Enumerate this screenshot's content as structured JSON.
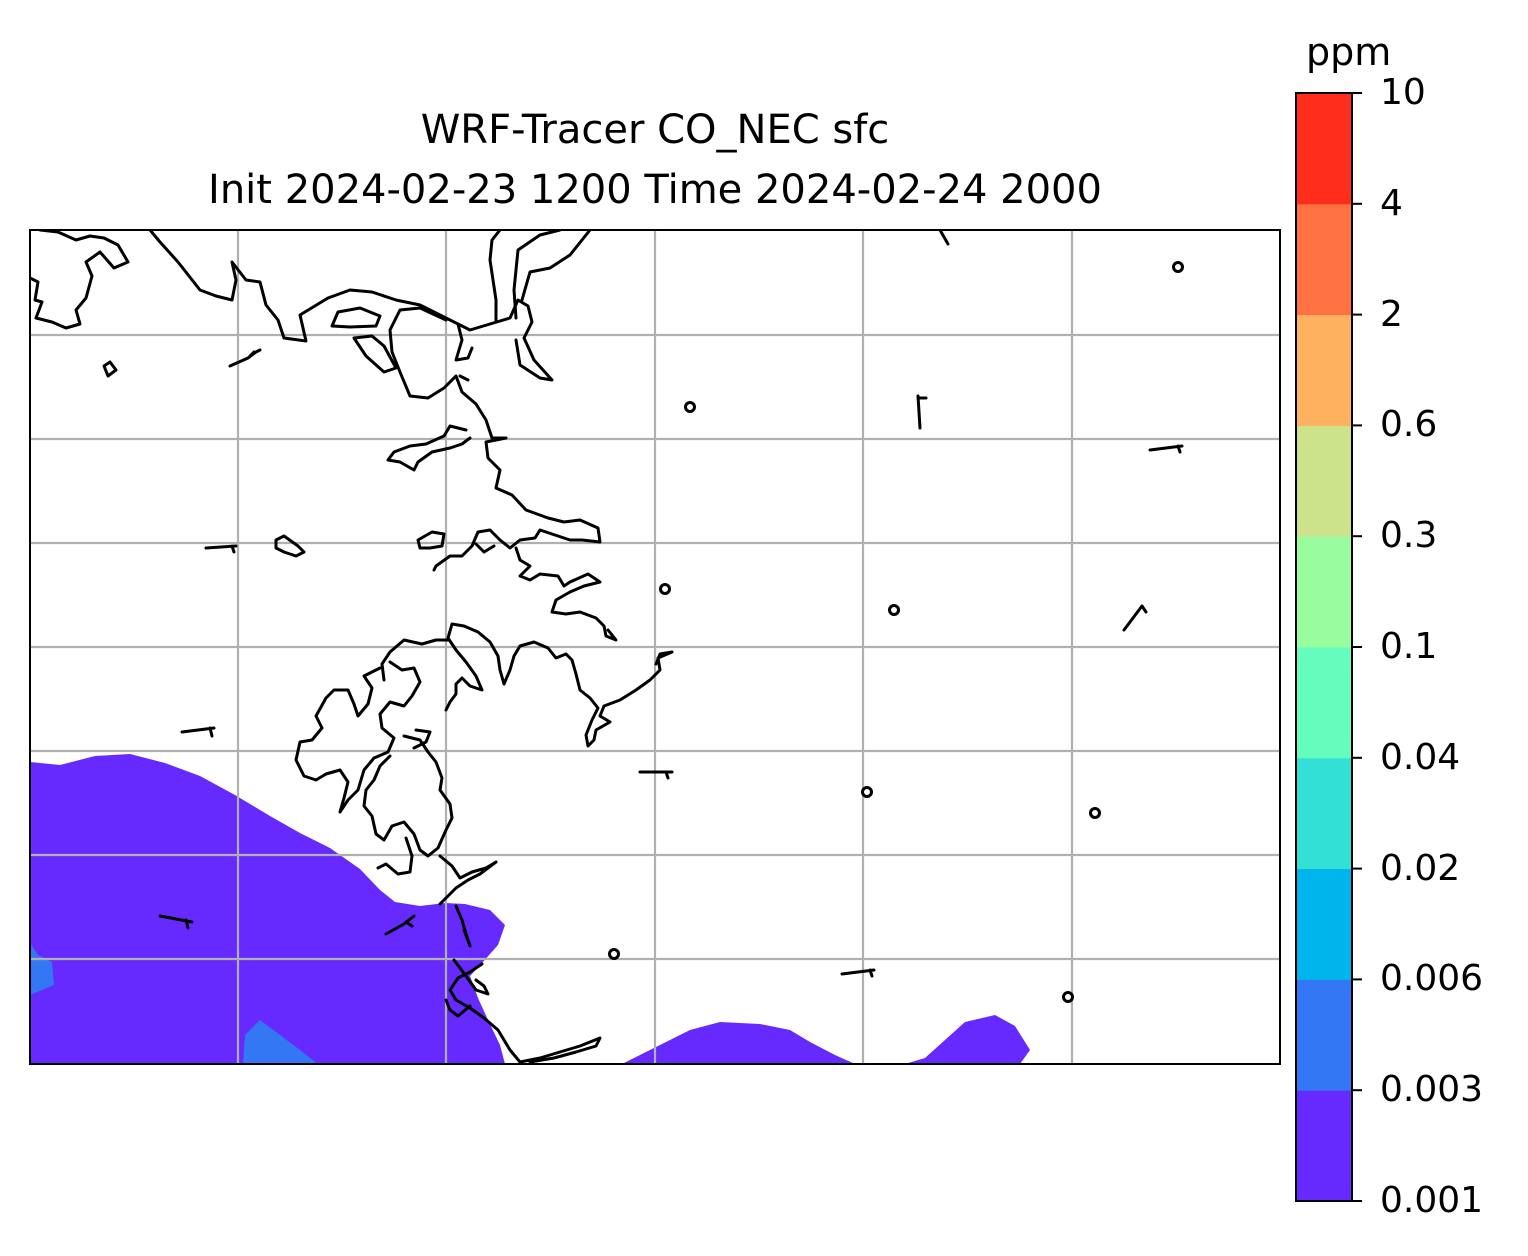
{
  "title_line1": "WRF-Tracer CO_NEC sfc",
  "title_line2": "Init 2024-02-23 1200 Time 2024-02-24 2000",
  "colorbar": {
    "unit": "ppm",
    "levels": [
      "0.001",
      "0.003",
      "0.006",
      "0.02",
      "0.04",
      "0.1",
      "0.3",
      "0.6",
      "2",
      "4",
      "10"
    ],
    "colors": [
      "#6629fe",
      "#3377f5",
      "#00b4ec",
      "#33e0d5",
      "#66fcbe",
      "#99fda0",
      "#cce38b",
      "#feb260",
      "#fe7140",
      "#ff2d1b"
    ]
  },
  "map": {
    "gridlines": true,
    "grid_color": "#b0b0b0",
    "coastline_color": "#000000",
    "fill_color_lowest": "#6629fe",
    "fill_color_second": "#3377f5"
  }
}
